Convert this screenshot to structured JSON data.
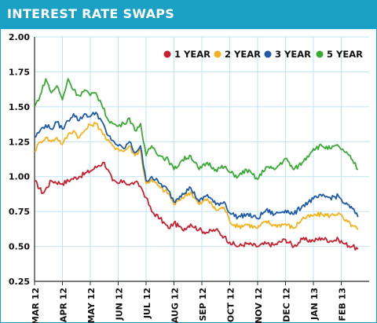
{
  "header": {
    "title": "INTEREST RATE SWAPS"
  },
  "colors": {
    "header_bg": "#1aa0c4",
    "grid": "#bfe3f2",
    "axis": "#2a2a2a",
    "series": [
      "#c8202e",
      "#f5b21b",
      "#1d5aa8",
      "#3aaa35"
    ]
  },
  "chart_data": {
    "type": "line",
    "title": "INTEREST RATE SWAPS",
    "xlabel": "",
    "ylabel": "",
    "ylim": [
      0.25,
      2.0
    ],
    "y_ticks": [
      "2.00",
      "1.75",
      "1.50",
      "1.25",
      "1.00",
      "0.75",
      "0.50",
      "0.25"
    ],
    "x_ticks": [
      "MAR 12",
      "APR 12",
      "MAY 12",
      "JUN 12",
      "JUL 12",
      "AUG 12",
      "SEP 12",
      "OCT 12",
      "NOV 12",
      "DEC 12",
      "JAN 13",
      "FEB 13"
    ],
    "grid": true,
    "legend_position": "top-right",
    "series": [
      {
        "name": "1 YEAR",
        "values": [
          [
            0,
            0.97
          ],
          [
            0.3,
            0.88
          ],
          [
            0.6,
            0.97
          ],
          [
            1.0,
            0.95
          ],
          [
            1.3,
            0.98
          ],
          [
            1.6,
            1.0
          ],
          [
            2.0,
            1.04
          ],
          [
            2.3,
            1.08
          ],
          [
            2.5,
            1.1
          ],
          [
            2.8,
            0.97
          ],
          [
            3.0,
            0.95
          ],
          [
            3.2,
            0.97
          ],
          [
            3.4,
            0.94
          ],
          [
            3.6,
            0.96
          ],
          [
            3.8,
            0.93
          ],
          [
            4.0,
            0.85
          ],
          [
            4.2,
            0.75
          ],
          [
            4.5,
            0.7
          ],
          [
            4.8,
            0.63
          ],
          [
            5.0,
            0.67
          ],
          [
            5.3,
            0.62
          ],
          [
            5.6,
            0.66
          ],
          [
            5.9,
            0.62
          ],
          [
            6.2,
            0.6
          ],
          [
            6.5,
            0.62
          ],
          [
            6.8,
            0.57
          ],
          [
            7.0,
            0.53
          ],
          [
            7.3,
            0.5
          ],
          [
            7.6,
            0.52
          ],
          [
            8.0,
            0.5
          ],
          [
            8.3,
            0.52
          ],
          [
            8.6,
            0.51
          ],
          [
            9.0,
            0.55
          ],
          [
            9.3,
            0.5
          ],
          [
            9.6,
            0.55
          ],
          [
            10.0,
            0.54
          ],
          [
            10.3,
            0.56
          ],
          [
            10.6,
            0.54
          ],
          [
            10.9,
            0.55
          ],
          [
            11.1,
            0.52
          ],
          [
            11.4,
            0.5
          ],
          [
            11.6,
            0.48
          ]
        ]
      },
      {
        "name": "2 YEAR",
        "values": [
          [
            0,
            1.18
          ],
          [
            0.2,
            1.25
          ],
          [
            0.4,
            1.28
          ],
          [
            0.6,
            1.25
          ],
          [
            0.8,
            1.28
          ],
          [
            1.0,
            1.23
          ],
          [
            1.2,
            1.3
          ],
          [
            1.4,
            1.33
          ],
          [
            1.6,
            1.28
          ],
          [
            1.8,
            1.33
          ],
          [
            2.0,
            1.37
          ],
          [
            2.2,
            1.38
          ],
          [
            2.4,
            1.33
          ],
          [
            2.6,
            1.26
          ],
          [
            2.8,
            1.22
          ],
          [
            3.0,
            1.2
          ],
          [
            3.2,
            1.18
          ],
          [
            3.4,
            1.22
          ],
          [
            3.6,
            1.15
          ],
          [
            3.8,
            1.2
          ],
          [
            3.9,
            1.05
          ],
          [
            4.0,
            0.95
          ],
          [
            4.2,
            0.98
          ],
          [
            4.5,
            0.92
          ],
          [
            4.8,
            0.88
          ],
          [
            5.0,
            0.8
          ],
          [
            5.3,
            0.85
          ],
          [
            5.6,
            0.89
          ],
          [
            5.9,
            0.8
          ],
          [
            6.2,
            0.84
          ],
          [
            6.5,
            0.76
          ],
          [
            6.8,
            0.78
          ],
          [
            7.0,
            0.68
          ],
          [
            7.3,
            0.64
          ],
          [
            7.6,
            0.66
          ],
          [
            8.0,
            0.63
          ],
          [
            8.3,
            0.68
          ],
          [
            8.6,
            0.65
          ],
          [
            9.0,
            0.66
          ],
          [
            9.3,
            0.63
          ],
          [
            9.6,
            0.7
          ],
          [
            10.0,
            0.72
          ],
          [
            10.3,
            0.73
          ],
          [
            10.6,
            0.72
          ],
          [
            10.9,
            0.74
          ],
          [
            11.1,
            0.69
          ],
          [
            11.4,
            0.65
          ],
          [
            11.6,
            0.62
          ]
        ]
      },
      {
        "name": "3 YEAR",
        "values": [
          [
            0,
            1.28
          ],
          [
            0.2,
            1.33
          ],
          [
            0.4,
            1.37
          ],
          [
            0.6,
            1.34
          ],
          [
            0.8,
            1.39
          ],
          [
            1.0,
            1.34
          ],
          [
            1.2,
            1.4
          ],
          [
            1.4,
            1.45
          ],
          [
            1.6,
            1.4
          ],
          [
            1.8,
            1.45
          ],
          [
            2.0,
            1.43
          ],
          [
            2.2,
            1.46
          ],
          [
            2.4,
            1.4
          ],
          [
            2.6,
            1.3
          ],
          [
            2.8,
            1.26
          ],
          [
            3.0,
            1.22
          ],
          [
            3.2,
            1.2
          ],
          [
            3.4,
            1.25
          ],
          [
            3.6,
            1.17
          ],
          [
            3.8,
            1.22
          ],
          [
            3.9,
            1.08
          ],
          [
            4.0,
            0.97
          ],
          [
            4.2,
            1.0
          ],
          [
            4.5,
            0.95
          ],
          [
            4.8,
            0.9
          ],
          [
            5.0,
            0.82
          ],
          [
            5.3,
            0.88
          ],
          [
            5.6,
            0.92
          ],
          [
            5.9,
            0.82
          ],
          [
            6.2,
            0.87
          ],
          [
            6.5,
            0.8
          ],
          [
            6.8,
            0.82
          ],
          [
            7.0,
            0.74
          ],
          [
            7.3,
            0.71
          ],
          [
            7.6,
            0.73
          ],
          [
            8.0,
            0.7
          ],
          [
            8.3,
            0.76
          ],
          [
            8.6,
            0.73
          ],
          [
            9.0,
            0.76
          ],
          [
            9.3,
            0.73
          ],
          [
            9.6,
            0.79
          ],
          [
            10.0,
            0.84
          ],
          [
            10.3,
            0.86
          ],
          [
            10.6,
            0.85
          ],
          [
            10.9,
            0.86
          ],
          [
            11.1,
            0.81
          ],
          [
            11.4,
            0.77
          ],
          [
            11.6,
            0.71
          ]
        ]
      },
      {
        "name": "5 YEAR",
        "values": [
          [
            0,
            1.5
          ],
          [
            0.2,
            1.58
          ],
          [
            0.4,
            1.7
          ],
          [
            0.6,
            1.6
          ],
          [
            0.8,
            1.65
          ],
          [
            1.0,
            1.55
          ],
          [
            1.2,
            1.7
          ],
          [
            1.4,
            1.62
          ],
          [
            1.6,
            1.58
          ],
          [
            1.8,
            1.62
          ],
          [
            2.0,
            1.58
          ],
          [
            2.2,
            1.6
          ],
          [
            2.4,
            1.52
          ],
          [
            2.6,
            1.42
          ],
          [
            2.8,
            1.38
          ],
          [
            3.0,
            1.36
          ],
          [
            3.2,
            1.38
          ],
          [
            3.4,
            1.42
          ],
          [
            3.6,
            1.33
          ],
          [
            3.8,
            1.38
          ],
          [
            3.9,
            1.25
          ],
          [
            4.0,
            1.15
          ],
          [
            4.2,
            1.22
          ],
          [
            4.5,
            1.15
          ],
          [
            4.8,
            1.12
          ],
          [
            5.0,
            1.05
          ],
          [
            5.3,
            1.12
          ],
          [
            5.6,
            1.15
          ],
          [
            5.9,
            1.05
          ],
          [
            6.2,
            1.1
          ],
          [
            6.5,
            1.05
          ],
          [
            6.8,
            1.07
          ],
          [
            7.0,
            1.03
          ],
          [
            7.3,
            1.0
          ],
          [
            7.6,
            1.05
          ],
          [
            8.0,
            0.98
          ],
          [
            8.3,
            1.07
          ],
          [
            8.6,
            1.05
          ],
          [
            9.0,
            1.13
          ],
          [
            9.3,
            1.05
          ],
          [
            9.6,
            1.1
          ],
          [
            10.0,
            1.2
          ],
          [
            10.3,
            1.22
          ],
          [
            10.6,
            1.2
          ],
          [
            10.9,
            1.22
          ],
          [
            11.1,
            1.18
          ],
          [
            11.4,
            1.12
          ],
          [
            11.6,
            1.05
          ]
        ]
      }
    ]
  }
}
